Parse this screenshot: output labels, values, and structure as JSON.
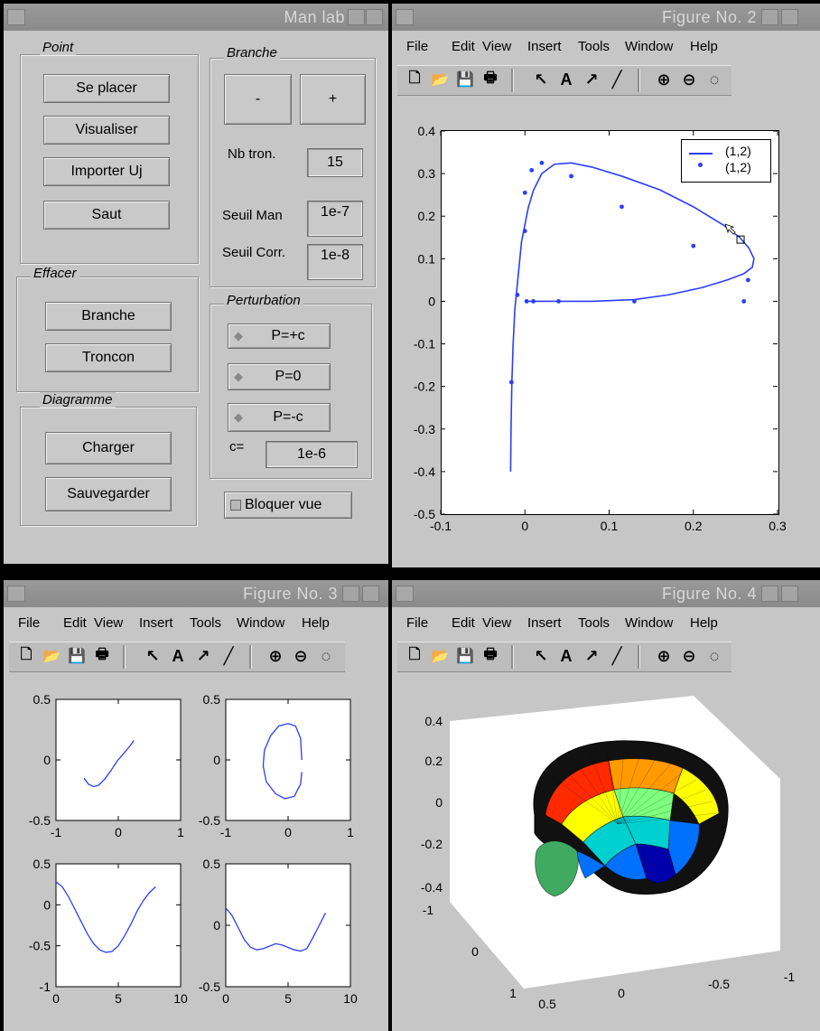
{
  "manlab": {
    "title": "Man lab",
    "point": {
      "label": "Point",
      "buttons": [
        "Se placer",
        "Visualiser",
        "Importer Uj",
        "Saut"
      ]
    },
    "effacer": {
      "label": "Effacer",
      "buttons": [
        "Branche",
        "Troncon"
      ]
    },
    "diagramme": {
      "label": "Diagramme",
      "buttons": [
        "Charger",
        "Sauvegarder"
      ]
    },
    "branche": {
      "label": "Branche",
      "minus": "-",
      "plus": "+",
      "nb_tron_label": "Nb tron.",
      "nb_tron_value": "15",
      "seuil_man_label": "Seuil Man",
      "seuil_man_value": "1e-7",
      "seuil_corr_label": "Seuil Corr.",
      "seuil_corr_value": "1e-8"
    },
    "perturbation": {
      "label": "Perturbation",
      "options": [
        "P=+c",
        "P=0",
        "P=-c"
      ],
      "c_label": "c=",
      "c_value": "1e-6"
    },
    "bloquer_vue": "Bloquer vue"
  },
  "menu": [
    "File",
    "Edit",
    "View",
    "Insert",
    "Tools",
    "Window",
    "Help"
  ],
  "toolbar_icons": [
    "new-file-icon",
    "open-folder-icon",
    "save-icon",
    "print-icon",
    "arrow-pointer-icon",
    "text-A-icon",
    "arrow-icon",
    "line-icon",
    "zoom-in-icon",
    "zoom-out-icon",
    "rotate-icon"
  ],
  "fig2": {
    "title": "Figure No. 2",
    "chart_data": {
      "type": "line",
      "xlim": [
        -0.1,
        0.3
      ],
      "ylim": [
        -0.5,
        0.4
      ],
      "xticks": [
        "-0.1",
        "0",
        "0.1",
        "0.2",
        "0.3"
      ],
      "yticks": [
        "0.4",
        "0.3",
        "0.2",
        "0.1",
        "0",
        "-0.1",
        "-0.2",
        "-0.3",
        "-0.4",
        "-0.5"
      ],
      "legend": [
        "(1,2)",
        "(1,2)"
      ],
      "legend_position": "top-right",
      "series": [
        {
          "style": "line",
          "color": "#2a3dff",
          "x": [
            -0.017,
            -0.0165,
            -0.0155,
            -0.014,
            -0.012,
            -0.01,
            -0.007,
            -0.004,
            0.0,
            0.004,
            0.01,
            0.02,
            0.035,
            0.055,
            0.08,
            0.115,
            0.16,
            0.2,
            0.235,
            0.255,
            0.266,
            0.272,
            0.27,
            0.26,
            0.24,
            0.21,
            0.17,
            0.13,
            0.08,
            0.04,
            0.01,
            0.0
          ],
          "y": [
            -0.4,
            -0.3,
            -0.19,
            -0.1,
            -0.02,
            0.02,
            0.08,
            0.14,
            0.18,
            0.22,
            0.26,
            0.3,
            0.322,
            0.325,
            0.315,
            0.294,
            0.262,
            0.222,
            0.18,
            0.15,
            0.125,
            0.1,
            0.08,
            0.065,
            0.05,
            0.032,
            0.015,
            0.004,
            0.0,
            0.0,
            0.0,
            0.0
          ]
        },
        {
          "style": "markers",
          "color": "#2a3dff",
          "x": [
            -0.016,
            -0.009,
            0.0,
            0.0,
            0.008,
            0.02,
            0.055,
            0.115,
            0.2,
            0.265,
            0.26,
            0.13,
            0.04,
            0.01,
            0.002
          ],
          "y": [
            -0.19,
            0.015,
            0.165,
            0.255,
            0.308,
            0.325,
            0.294,
            0.222,
            0.13,
            0.05,
            0.0,
            0.0,
            0.0,
            0.0,
            0.0
          ]
        }
      ],
      "annotations": [
        {
          "type": "square-marker",
          "x": 0.255,
          "y": 0.145
        }
      ]
    }
  },
  "fig3": {
    "title": "Figure No. 3",
    "chart_data": [
      {
        "type": "line",
        "xlim": [
          -1,
          1
        ],
        "ylim": [
          -0.5,
          0.5
        ],
        "xticks": [
          "-1",
          "0",
          "1"
        ],
        "yticks": [
          "0.5",
          "0",
          "-0.5"
        ],
        "x": [
          -0.55,
          -0.48,
          -0.4,
          -0.32,
          -0.22,
          -0.12,
          -0.02,
          0.08,
          0.18,
          0.25
        ],
        "y": [
          -0.15,
          -0.2,
          -0.22,
          -0.21,
          -0.16,
          -0.09,
          -0.01,
          0.05,
          0.11,
          0.16
        ]
      },
      {
        "type": "line",
        "xlim": [
          -1,
          1
        ],
        "ylim": [
          -0.5,
          0.5
        ],
        "xticks": [
          "-1",
          "0",
          "1"
        ],
        "yticks": [
          "0.5",
          "0",
          "-0.5"
        ],
        "x": [
          0.22,
          0.2,
          0.12,
          0.0,
          -0.15,
          -0.28,
          -0.38,
          -0.4,
          -0.35,
          -0.2,
          -0.05,
          0.1,
          0.2,
          0.22
        ],
        "y": [
          0.0,
          0.18,
          0.28,
          0.3,
          0.28,
          0.2,
          0.08,
          -0.05,
          -0.18,
          -0.28,
          -0.32,
          -0.3,
          -0.2,
          -0.1
        ]
      },
      {
        "type": "line",
        "xlim": [
          0,
          10
        ],
        "ylim": [
          -1,
          0.5
        ],
        "xticks": [
          "0",
          "5",
          "10"
        ],
        "yticks": [
          "0.5",
          "0",
          "-0.5",
          "-1"
        ],
        "x": [
          0,
          0.5,
          1,
          1.5,
          2,
          2.5,
          3,
          3.5,
          4,
          4.5,
          5,
          5.5,
          6,
          6.5,
          7,
          7.5,
          8
        ],
        "y": [
          0.28,
          0.22,
          0.1,
          -0.05,
          -0.2,
          -0.35,
          -0.47,
          -0.55,
          -0.58,
          -0.57,
          -0.5,
          -0.38,
          -0.24,
          -0.08,
          0.05,
          0.15,
          0.22
        ]
      },
      {
        "type": "line",
        "xlim": [
          0,
          10
        ],
        "ylim": [
          -0.5,
          0.5
        ],
        "xticks": [
          "0",
          "5",
          "10"
        ],
        "yticks": [
          "0.5",
          "0",
          "-0.5"
        ],
        "x": [
          0,
          0.5,
          1,
          1.5,
          2,
          2.5,
          3,
          3.5,
          4,
          4.5,
          5,
          5.5,
          6,
          6.5,
          7,
          7.5,
          8
        ],
        "y": [
          0.14,
          0.08,
          -0.02,
          -0.12,
          -0.18,
          -0.2,
          -0.19,
          -0.17,
          -0.15,
          -0.16,
          -0.18,
          -0.2,
          -0.21,
          -0.19,
          -0.1,
          0.0,
          0.1
        ]
      }
    ]
  },
  "fig4": {
    "title": "Figure No. 4",
    "chart_data": {
      "type": "surface",
      "zticks": [
        "0.4",
        "0.2",
        "0",
        "-0.2",
        "-0.4"
      ],
      "yticks": [
        "-1",
        "0",
        "1"
      ],
      "xticks": [
        "0.5",
        "0",
        "-0.5",
        "-1"
      ],
      "colormap": [
        "#8b0000",
        "#ff2a00",
        "#ff9a00",
        "#ffff00",
        "#7fff7f",
        "#00d0d0",
        "#0070ff",
        "#0000aa"
      ]
    }
  }
}
